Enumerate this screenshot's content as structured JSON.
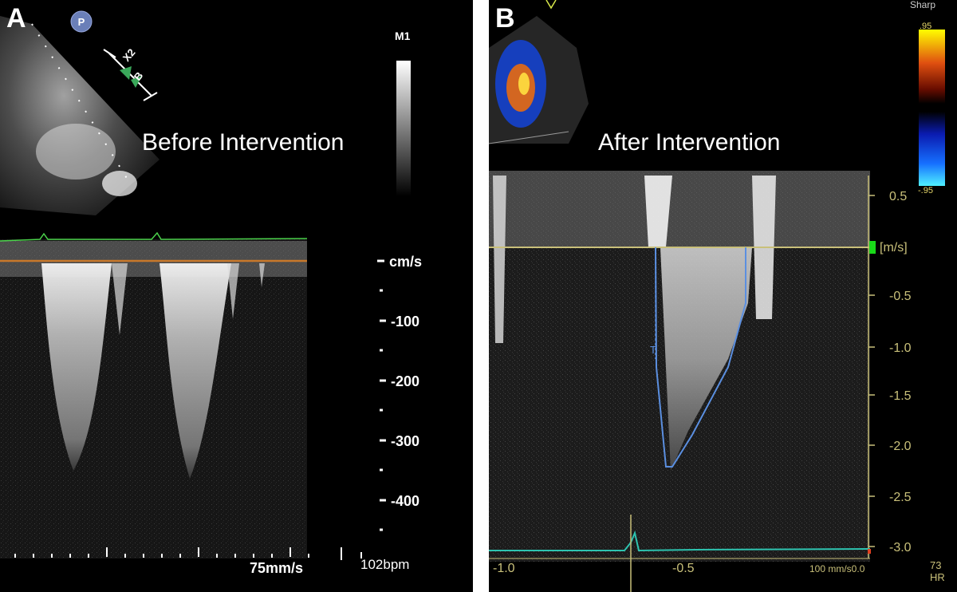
{
  "panel_a": {
    "letter": "A",
    "caption": "Before Intervention",
    "mode_label": "M1",
    "probe_badge": "P",
    "cursor_labels": [
      "X2",
      "B"
    ],
    "velocity_unit": "cm/s",
    "velocity_ticks": [
      "-100",
      "-200",
      "-300",
      "-400"
    ],
    "sweep_speed": "75mm/s",
    "heart_rate": "102bpm"
  },
  "panel_b": {
    "letter": "B",
    "caption": "After Intervention",
    "sharp_label": "Sharp",
    "scale_max": ".95",
    "scale_min": "-.95",
    "velocity_unit": "[m/s]",
    "velocity_ticks": [
      "0.5",
      "-0.5",
      "-1.0",
      "-1.5",
      "-2.0",
      "-2.5",
      "-3.0"
    ],
    "time_ticks": [
      "-1.0",
      "-0.5"
    ],
    "time_end": "100 mm/s0.0",
    "hr_value": "73",
    "hr_label": "HR",
    "trace_marker": "T"
  },
  "colors": {
    "background": "#000000",
    "baseline_orange": "#c8782a",
    "ecg_green_a": "#4bd24b",
    "trace_blue": "#5b8fe0",
    "baseline_yellow": "#c9c07a",
    "ecg_teal": "#2ec4b0",
    "marker_green": "#19d919"
  }
}
